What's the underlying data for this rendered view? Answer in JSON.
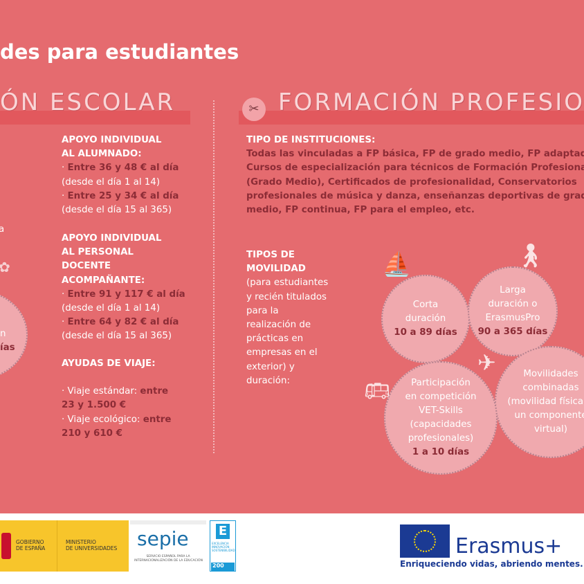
{
  "header": {
    "title": "des para estudiantes"
  },
  "sections": {
    "left": {
      "title": "ÓN ESCOLAR",
      "partial_text": [
        "a",
        "n",
        "ías"
      ]
    },
    "right": {
      "title": "FORMACIÓN PROFESIO",
      "icon": "tools-icon"
    }
  },
  "school": {
    "student_support": {
      "heading1": "APOYO INDIVIDUAL",
      "heading2": "AL ALUMNADO:",
      "item1": "Entre 36 y 48 € al día",
      "item1_note": "(desde el día 1 al 14)",
      "item2": "Entre 25 y 34 € al día",
      "item2_note": "(desde el día 15 al 365)"
    },
    "staff_support": {
      "heading1": "APOYO INDIVIDUAL",
      "heading2": "AL PERSONAL",
      "heading3": "DOCENTE",
      "heading4": "ACOMPAÑANTE:",
      "item1": "Entre 91 y 117 € al día",
      "item1_note": "(desde el día 1 al 14)",
      "item2": "Entre 64 y 82 € al día",
      "item2_note": "(desde el día 15 al 365)"
    },
    "travel": {
      "heading": "AYUDAS DE VIAJE:",
      "std_label": "· Viaje estándar: ",
      "std_value1": "entre",
      "std_value2": "23 y 1.500 €",
      "eco_label": "· Viaje ecológico: ",
      "eco_value1": "entre",
      "eco_value2": "210 y 610 €"
    }
  },
  "fp": {
    "institutions_heading": "TIPO DE INSTITUCIONES:",
    "institutions_lines": [
      "Todas las vinculadas a FP básica, FP de grado medio, FP adaptada,",
      "Cursos de especialización para técnicos de Formación Profesional",
      "(Grado Medio), Certificados de profesionalidad, Conservatorios",
      "profesionales de música y danza, enseñanzas deportivas de grado",
      "medio, FP continua, FP para el empleo, etc."
    ],
    "mobility_heading": [
      "TIPOS DE",
      "MOVILIDAD"
    ],
    "mobility_desc": [
      "(para estudiantes",
      "y recién titulados",
      "para la",
      "realización de",
      "prácticas en",
      "empresas en el",
      "exterior) y",
      "duración:"
    ],
    "circles": [
      {
        "lines": [
          "Corta",
          "duración"
        ],
        "value": "10 a 89 días",
        "icon": "ship-icon"
      },
      {
        "lines": [
          "Larga",
          "duración o",
          "ErasmusPro"
        ],
        "value": "90 a 365 días",
        "icon": "traveler-icon"
      },
      {
        "lines": [
          "Participación",
          "en competición",
          "VET-Skills",
          "(capacidades",
          "profesionales)"
        ],
        "value": "1 a 10 días",
        "icon": "bus-icon"
      },
      {
        "lines": [
          "Movilidades",
          "combinadas",
          "(movilidad física +",
          "un componente",
          "virtual)"
        ],
        "value": "",
        "icon": "airplane-icon"
      }
    ]
  },
  "footer": {
    "gob": [
      "GOBIERNO",
      "DE ESPAÑA"
    ],
    "ministry": [
      "MINISTERIO",
      "DE UNIVERSIDADES"
    ],
    "sepie": "sepie",
    "sepie_sub": [
      "SERVICIO ESPAÑOL PARA LA",
      "INTERNACIONALIZACIÓN DE LA EDUCACIÓN"
    ],
    "excellence": [
      "EXCELENCIA",
      "INNOVACIÓN",
      "SOSTENIBILIDAD"
    ],
    "excellence_badge": "200",
    "erasmus": "Erasmus+",
    "tagline": "Enriqueciendo vidas, abriendo mentes.",
    "colors": {
      "yellow": "#f7c52b",
      "eu_blue": "#1b3a93"
    }
  },
  "colors": {
    "background": "#e56b6f",
    "dark_text": "#8c2c36",
    "circle": "#f0a9ae"
  }
}
